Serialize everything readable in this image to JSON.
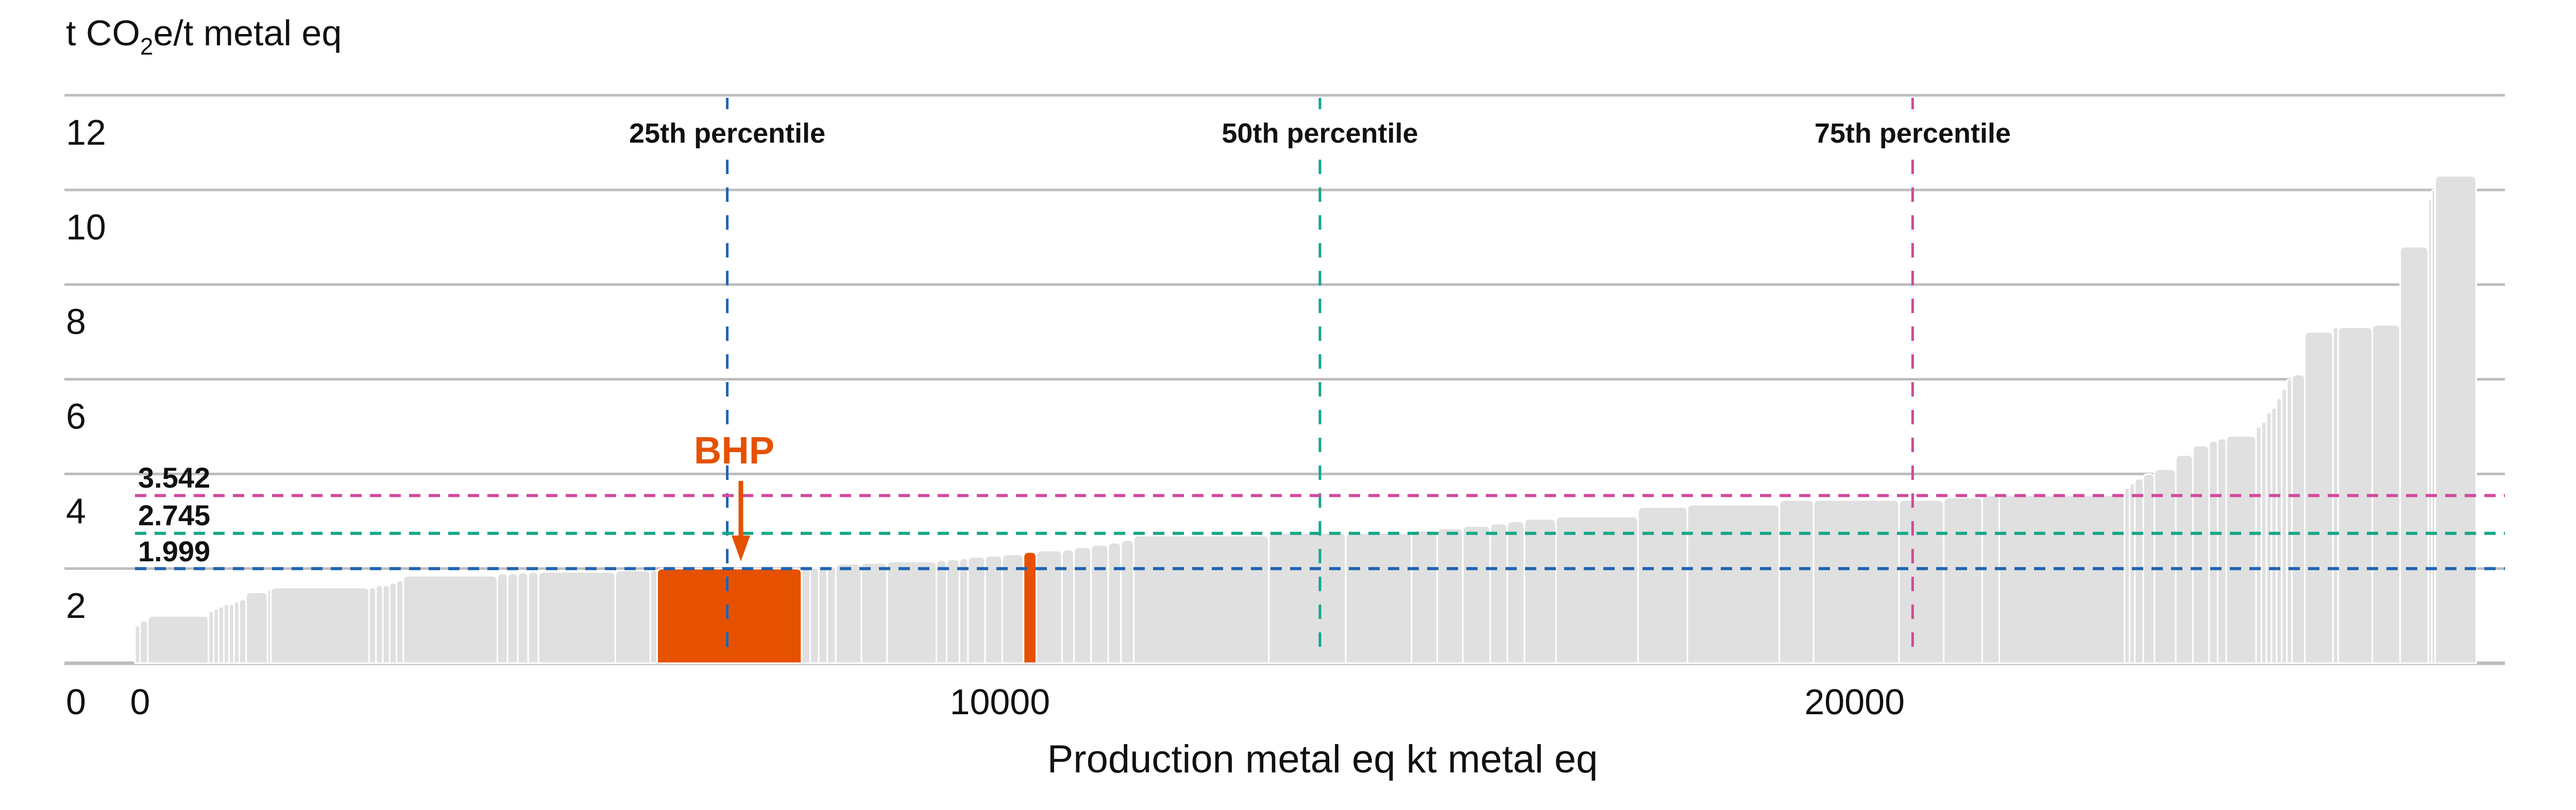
{
  "chart_data": {
    "type": "bar",
    "subtype": "cost-curve (variable width bars, sorted ascending)",
    "ylabel_prefix": "t CO",
    "ylabel_sub": "2",
    "ylabel_suffix": "e/t metal eq",
    "xlabel": "Production metal eq kt metal eq",
    "xlim": [
      0,
      27730
    ],
    "ylim": [
      0,
      12
    ],
    "yticks": [
      "0",
      "2",
      "4",
      "6",
      "8",
      "10",
      "12"
    ],
    "ytick_values": [
      0,
      2,
      4,
      6,
      8,
      10,
      12
    ],
    "xticks": [
      "0",
      "10000",
      "20000"
    ],
    "xtick_values": [
      0,
      10000,
      20000
    ],
    "grid": "horizontal",
    "colors": {
      "bar": "#e0e0e0",
      "highlight": "#e65100",
      "grid": "#bdbdbd",
      "p25": "#1f64b0",
      "p50": "#13a689",
      "p75": "#d1499b"
    },
    "percentiles": [
      {
        "label": "25th percentile",
        "x": 6930,
        "y": 1.999,
        "value_label": "1.999",
        "color_key": "p25"
      },
      {
        "label": "50th percentile",
        "x": 13865,
        "y": 2.745,
        "value_label": "2.745",
        "color_key": "p50"
      },
      {
        "label": "75th percentile",
        "x": 20800,
        "y": 3.542,
        "value_label": "3.542",
        "color_key": "p75"
      }
    ],
    "highlight": {
      "label": "BHP",
      "bar_index": 40
    },
    "bars": [
      [
        60,
        0.8
      ],
      [
        90,
        0.9
      ],
      [
        710,
        1.0
      ],
      [
        60,
        1.1
      ],
      [
        60,
        1.15
      ],
      [
        60,
        1.2
      ],
      [
        60,
        1.25
      ],
      [
        60,
        1.25
      ],
      [
        60,
        1.3
      ],
      [
        80,
        1.35
      ],
      [
        250,
        1.5
      ],
      [
        40,
        1.55
      ],
      [
        1150,
        1.6
      ],
      [
        80,
        1.6
      ],
      [
        80,
        1.65
      ],
      [
        80,
        1.65
      ],
      [
        80,
        1.7
      ],
      [
        80,
        1.75
      ],
      [
        1100,
        1.85
      ],
      [
        120,
        1.9
      ],
      [
        120,
        1.9
      ],
      [
        120,
        1.92
      ],
      [
        120,
        1.93
      ],
      [
        900,
        1.93
      ],
      [
        410,
        1.96
      ],
      [
        80,
        1.97
      ],
      [
        1690,
        1.999
      ],
      [
        100,
        2.0
      ],
      [
        100,
        2.02
      ],
      [
        100,
        2.05
      ],
      [
        100,
        2.05
      ],
      [
        300,
        2.1
      ],
      [
        300,
        2.12
      ],
      [
        577,
        2.15
      ],
      [
        120,
        2.18
      ],
      [
        150,
        2.2
      ],
      [
        100,
        2.22
      ],
      [
        200,
        2.25
      ],
      [
        200,
        2.27
      ],
      [
        250,
        2.3
      ],
      [
        150,
        2.35
      ],
      [
        300,
        2.38
      ],
      [
        140,
        2.4
      ],
      [
        200,
        2.45
      ],
      [
        200,
        2.5
      ],
      [
        150,
        2.55
      ],
      [
        150,
        2.6
      ],
      [
        1580,
        2.7
      ],
      [
        900,
        2.75
      ],
      [
        770,
        2.75
      ],
      [
        300,
        2.8
      ],
      [
        300,
        2.85
      ],
      [
        320,
        2.9
      ],
      [
        200,
        2.95
      ],
      [
        200,
        3.0
      ],
      [
        370,
        3.05
      ],
      [
        960,
        3.1
      ],
      [
        577,
        3.3
      ],
      [
        1077,
        3.35
      ],
      [
        400,
        3.45
      ],
      [
        1000,
        3.45
      ],
      [
        523,
        3.45
      ],
      [
        450,
        3.5
      ],
      [
        200,
        3.55
      ],
      [
        1465,
        3.55
      ],
      [
        60,
        3.7
      ],
      [
        60,
        3.8
      ],
      [
        100,
        3.9
      ],
      [
        130,
        4.0
      ],
      [
        250,
        4.1
      ],
      [
        200,
        4.4
      ],
      [
        190,
        4.6
      ],
      [
        100,
        4.7
      ],
      [
        100,
        4.75
      ],
      [
        350,
        4.8
      ],
      [
        60,
        5.0
      ],
      [
        60,
        5.1
      ],
      [
        60,
        5.3
      ],
      [
        60,
        5.4
      ],
      [
        60,
        5.6
      ],
      [
        60,
        5.8
      ],
      [
        60,
        6.0
      ],
      [
        150,
        6.1
      ],
      [
        330,
        7.0
      ],
      [
        60,
        7.1
      ],
      [
        400,
        7.1
      ],
      [
        325,
        7.15
      ],
      [
        330,
        8.8
      ],
      [
        40,
        9.8
      ],
      [
        40,
        10.0
      ],
      [
        480,
        10.3
      ]
    ]
  }
}
